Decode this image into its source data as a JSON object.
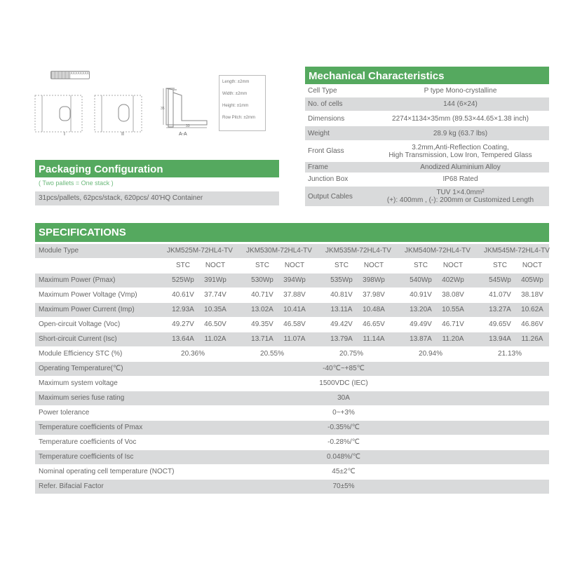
{
  "drawings": {
    "barcode": "XXXXXXXX",
    "view1": "I",
    "view2": "II",
    "section": "A-A",
    "dim_height": "35",
    "dim_width": "33",
    "tolerances": [
      "Length: ±2mm",
      "Width: ±2mm",
      "Height: ±1mm",
      "Row Pitch: ±2mm"
    ]
  },
  "packaging": {
    "title": "Packaging Configuration",
    "subtitle": "( Two pallets = One stack )",
    "detail": "31pcs/pallets, 62pcs/stack, 620pcs/ 40'HQ Container"
  },
  "mechanical": {
    "title": "Mechanical Characteristics",
    "rows": [
      {
        "label": "Cell  Type",
        "value": "P type Mono-crystalline"
      },
      {
        "label": "No. of cells",
        "value": "144 (6×24)"
      },
      {
        "label": "Dimensions",
        "value": "2274×1134×35mm (89.53×44.65×1.38 inch)"
      },
      {
        "label": "Weight",
        "value": "28.9 kg (63.7 lbs)"
      },
      {
        "label": "Front Glass",
        "value": "3.2mm,Anti-Reflection Coating,",
        "value2": "High Transmission, Low Iron, Tempered Glass"
      },
      {
        "label": "Frame",
        "value": "Anodized Aluminium Alloy"
      },
      {
        "label": "Junction Box",
        "value": "IP68 Rated"
      },
      {
        "label": "Output Cables",
        "value": "TUV  1×4.0mm²",
        "value2": "(+): 400mm , (-): 200mm or Customized Length"
      }
    ]
  },
  "specs": {
    "title": "SPECIFICATIONS",
    "module_type_label": "Module Type",
    "models": [
      "JKM525M-72HL4-TV",
      "JKM530M-72HL4-TV",
      "JKM535M-72HL4-TV",
      "JKM540M-72HL4-TV",
      "JKM545M-72HL4-TV"
    ],
    "stc": "STC",
    "noct": "NOCT",
    "rows": [
      {
        "label": "Maximum Power (Pmax)",
        "values": [
          "525Wp",
          "391Wp",
          "530Wp",
          "394Wp",
          "535Wp",
          "398Wp",
          "540Wp",
          "402Wp",
          "545Wp",
          "405Wp"
        ]
      },
      {
        "label": "Maximum Power Voltage (Vmp)",
        "values": [
          "40.61V",
          "37.74V",
          "40.71V",
          "37.88V",
          "40.81V",
          "37.98V",
          "40.91V",
          "38.08V",
          "41.07V",
          "38.18V"
        ]
      },
      {
        "label": "Maximum Power Current (Imp)",
        "values": [
          "12.93A",
          "10.35A",
          "13.02A",
          "10.41A",
          "13.11A",
          "10.48A",
          "13.20A",
          "10.55A",
          "13.27A",
          "10.62A"
        ]
      },
      {
        "label": "Open-circuit Voltage (Voc)",
        "values": [
          "49.27V",
          "46.50V",
          "49.35V",
          "46.58V",
          "49.42V",
          "46.65V",
          "49.49V",
          "46.71V",
          "49.65V",
          "46.86V"
        ]
      },
      {
        "label": "Short-circuit Current (Isc)",
        "values": [
          "13.64A",
          "11.02A",
          "13.71A",
          "11.07A",
          "13.79A",
          "11.14A",
          "13.87A",
          "11.20A",
          "13.94A",
          "11.26A"
        ]
      }
    ],
    "efficiency": {
      "label": "Module Efficiency STC (%)",
      "values": [
        "20.36%",
        "20.55%",
        "20.75%",
        "20.94%",
        "21.13%"
      ]
    },
    "common": [
      {
        "label": "Operating Temperature(℃)",
        "value": "-40℃~+85℃"
      },
      {
        "label": "Maximum system voltage",
        "value": "1500VDC (IEC)"
      },
      {
        "label": "Maximum series fuse rating",
        "value": "30A"
      },
      {
        "label": "Power tolerance",
        "value": "0~+3%"
      },
      {
        "label": "Temperature coefficients of Pmax",
        "value": "-0.35%/℃"
      },
      {
        "label": "Temperature coefficients of Voc",
        "value": "-0.28%/℃"
      },
      {
        "label": "Temperature coefficients of Isc",
        "value": "0.048%/℃"
      },
      {
        "label": "Nominal operating cell temperature  (NOCT)",
        "value": "45±2℃"
      },
      {
        "label": "Refer. Bifacial Factor",
        "value": "70±5%"
      }
    ]
  },
  "colors": {
    "accent": "#55a95f",
    "row_gray": "#d9dadb",
    "subtitle": "#6bb87a"
  }
}
